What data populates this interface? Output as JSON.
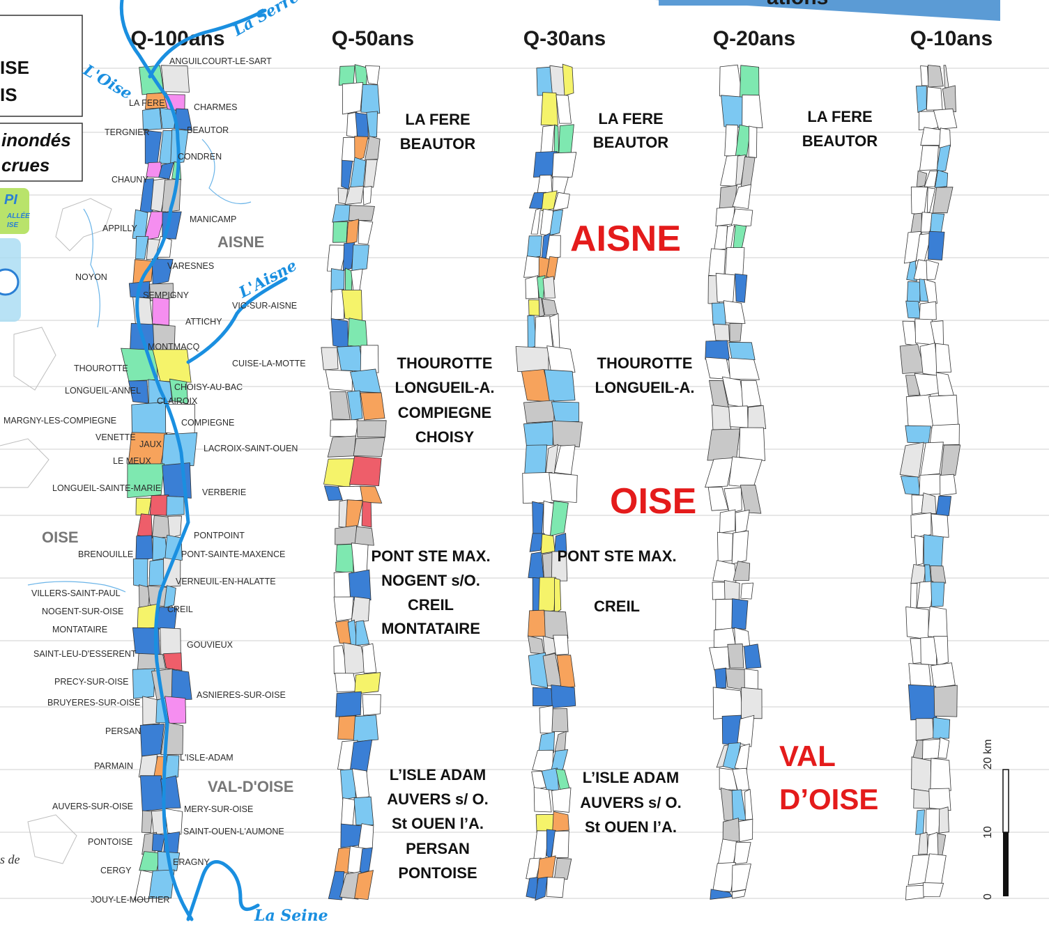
{
  "header": {
    "banner_text": "ations"
  },
  "legend": {
    "line1": "ISE",
    "line2": "IS",
    "line3": "inondés",
    "line4": "crues",
    "logo_text": "PI",
    "logo_sub1": "ALLÉE",
    "logo_sub2": "ISE"
  },
  "columns": [
    {
      "title": "Q-100ans"
    },
    {
      "title": "Q-50ans"
    },
    {
      "title": "Q-30ans"
    },
    {
      "title": "Q-20ans"
    },
    {
      "title": "Q-10ans"
    }
  ],
  "rivers": {
    "serre": "La Serre",
    "oise": "L'Oise",
    "aisne": "L'Aisne",
    "seine": "La Seine"
  },
  "departments": {
    "aisne_grey": "AISNE",
    "oise_grey": "OISE",
    "valdoise_grey": "VAL-D'OISE",
    "aisne_red": "AISNE",
    "oise_red": "OISE",
    "valdoise_red_1": "VAL",
    "valdoise_red_2": "D’OISE"
  },
  "towns": [
    "ANGUILCOURT-LE-SART",
    "LA FERE",
    "CHARMES",
    "TERGNIER",
    "BEAUTOR",
    "CONDREN",
    "CHAUNY",
    "MANICAMP",
    "APPILLY",
    "VARESNES",
    "NOYON",
    "SEMPIGNY",
    "VIC-SUR-AISNE",
    "ATTICHY",
    "MONTMACQ",
    "CUISE-LA-MOTTE",
    "THOUROTTE",
    "LONGUEIL-ANNEL",
    "CHOISY-AU-BAC",
    "CLAIROIX",
    "MARGNY-LES-COMPIEGNE",
    "COMPIEGNE",
    "VENETTE",
    "JAUX",
    "LACROIX-SAINT-OUEN",
    "LE MEUX",
    "LONGUEIL-SAINTE-MARIE",
    "VERBERIE",
    "PONTPOINT",
    "BRENOUILLE",
    "PONT-SAINTE-MAXENCE",
    "VERNEUIL-EN-HALATTE",
    "VILLERS-SAINT-PAUL",
    "CREIL",
    "NOGENT-SUR-OISE",
    "MONTATAIRE",
    "GOUVIEUX",
    "SAINT-LEU-D'ESSERENT",
    "PRECY-SUR-OISE",
    "ASNIERES-SUR-OISE",
    "BRUYERES-SUR-OISE",
    "PERSAN",
    "L'ISLE-ADAM",
    "PARMAIN",
    "AUVERS-SUR-OISE",
    "MERY-SUR-OISE",
    "SAINT-OUEN-L'AUMONE",
    "PONTOISE",
    "ERAGNY",
    "CERGY",
    "JOUY-LE-MOUTIER"
  ],
  "annotations": {
    "q50": {
      "group1": [
        "LA FERE",
        "BEAUTOR"
      ],
      "group2": [
        "THOUROTTE",
        "LONGUEIL-A.",
        "COMPIEGNE",
        "CHOISY"
      ],
      "group3": [
        "PONT STE MAX.",
        "NOGENT s/O.",
        "CREIL",
        "MONTATAIRE"
      ],
      "group4": [
        "L’ISLE ADAM",
        "AUVERS s/ O.",
        "St OUEN l’A.",
        "PERSAN",
        "PONTOISE"
      ]
    },
    "q30": {
      "group1": [
        "LA FERE",
        "BEAUTOR"
      ],
      "group2": [
        "THOUROTTE",
        "LONGUEIL-A."
      ],
      "group3": [
        "PONT STE MAX.",
        "CREIL"
      ],
      "group4": [
        "L’ISLE ADAM",
        "AUVERS s/ O.",
        "St OUEN l’A."
      ]
    },
    "q20": {
      "group1": [
        "LA FERE",
        "BEAUTOR"
      ]
    }
  },
  "scale": {
    "label_top": "20 km",
    "label_mid": "10",
    "label_bottom": "0"
  },
  "footer_left": "s de",
  "colors": {
    "dark_blue": "#3a7fd5",
    "light_blue": "#7cc8f2",
    "green": "#7ee8b0",
    "orange": "#f7a35c",
    "red": "#ee5e6a",
    "pink": "#f58ef0",
    "yellow": "#f5f36a",
    "grey": "#c8c8c8",
    "light_grey": "#e6e6e6",
    "white": "#ffffff",
    "river": "#1a8fe0",
    "banner": "#5b9bd5",
    "dept_red": "#e41b1b"
  }
}
